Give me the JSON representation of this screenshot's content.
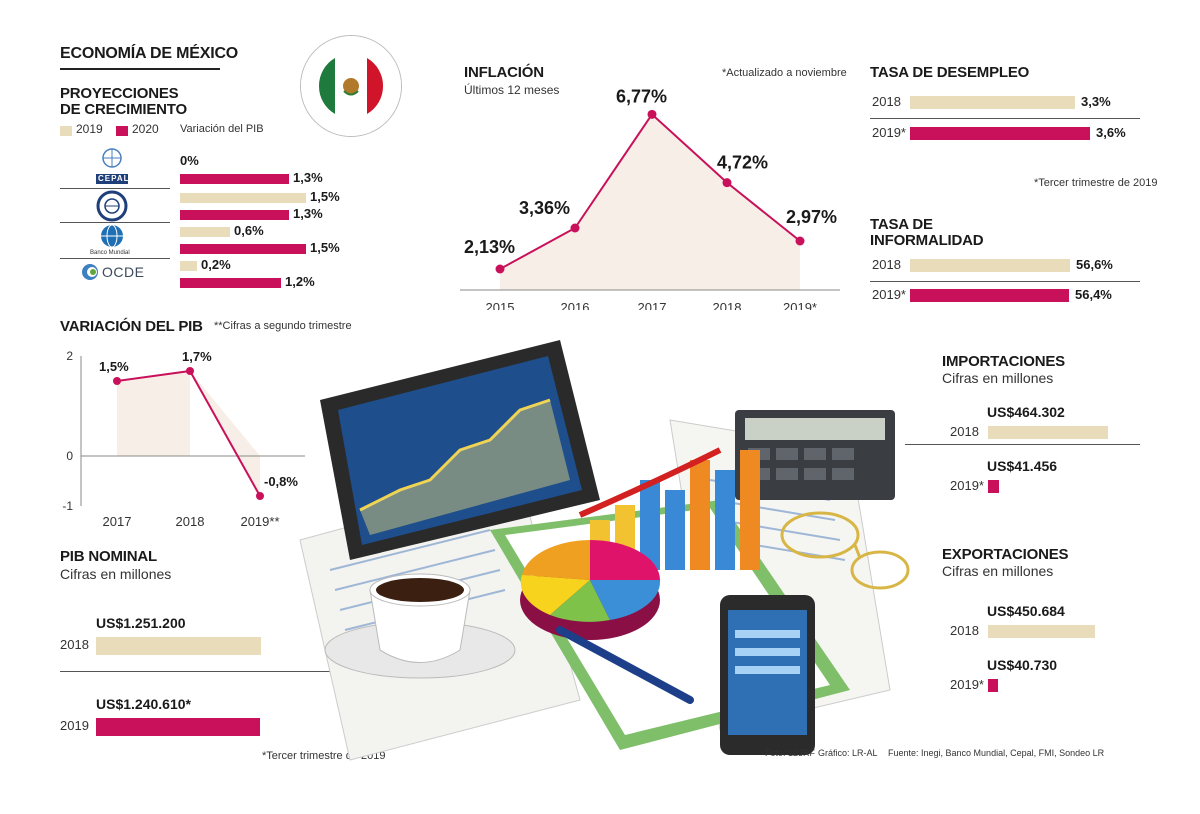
{
  "header": {
    "title": "ECONOMÍA DE MÉXICO"
  },
  "proyecciones": {
    "title_line1": "PROYECCIONES",
    "title_line2": "DE CRECIMIENTO",
    "legend_2019": "2019",
    "legend_2020": "2020",
    "legend_note": "Variación del PIB",
    "orgs": [
      {
        "name": "CEPAL",
        "label_2019": "0%",
        "label_2020": "1,3%"
      },
      {
        "name": "FMI",
        "label_2019": "1,5%",
        "label_2020": "1,3%"
      },
      {
        "name": "Banco Mundial",
        "label_2019": "0,6%",
        "label_2020": "1,5%"
      },
      {
        "name": "OCDE",
        "label_2019": "0,2%",
        "label_2020": "1,2%"
      }
    ],
    "org_labels": {
      "cepal": "CEPAL",
      "bm": "Banco Mundial",
      "ocde": "OCDE"
    }
  },
  "inflacion": {
    "title": "INFLACIÓN",
    "subtitle": "Últimos 12 meses",
    "note": "*Actualizado a noviembre"
  },
  "pib_variacion": {
    "title": "VARIACIÓN DEL PIB",
    "note": "**Cifras a segundo trimestre"
  },
  "desempleo": {
    "title": "TASA DE DESEMPLEO",
    "rows": [
      {
        "year": "2018",
        "label": "3,3%"
      },
      {
        "year": "2019*",
        "label": "3,6%"
      }
    ],
    "note": "*Tercer trimestre de 2019"
  },
  "informalidad": {
    "title_line1": "TASA DE",
    "title_line2": "INFORMALIDAD",
    "rows": [
      {
        "year": "2018",
        "label": "56,6%"
      },
      {
        "year": "2019*",
        "label": "56,4%"
      }
    ]
  },
  "importaciones": {
    "title": "IMPORTACIONES",
    "subtitle": "Cifras en millones",
    "rows": [
      {
        "year": "2018",
        "label": "US$464.302"
      },
      {
        "year": "2019*",
        "label": "US$41.456"
      }
    ]
  },
  "exportaciones": {
    "title": "EXPORTACIONES",
    "subtitle": "Cifras en millones",
    "rows": [
      {
        "year": "2018",
        "label": "US$450.684"
      },
      {
        "year": "2019*",
        "label": "US$40.730"
      }
    ]
  },
  "pib_nominal": {
    "title": "PIB NOMINAL",
    "subtitle": "Cifras en millones",
    "rows": [
      {
        "year": "2018",
        "label": "US$1.251.200"
      },
      {
        "year": "2019",
        "label": "US$1.240.610*"
      }
    ],
    "note": "*Tercer trimestre de 2019"
  },
  "credits": {
    "foto": "Foto: 123RF",
    "grafico": "Gráfico: LR-AL",
    "fuente": "Fuente: Inegi, Banco Mundial, Cepal, FMI, Sondeo LR"
  },
  "colors": {
    "cream": "#e9dcbb",
    "magenta": "#c8115a",
    "area": "#f7efe7"
  },
  "chart_data": [
    {
      "type": "bar",
      "title": "PROYECCIONES DE CRECIMIENTO",
      "categories": [
        "CEPAL",
        "FMI",
        "Banco Mundial",
        "OCDE"
      ],
      "series": [
        {
          "name": "2019",
          "values": [
            0,
            1.5,
            0.6,
            0.2
          ]
        },
        {
          "name": "2020",
          "values": [
            1.3,
            1.3,
            1.5,
            1.2
          ]
        }
      ],
      "unit": "Variación del PIB (%)",
      "orientation": "horizontal"
    },
    {
      "type": "area",
      "title": "INFLACIÓN",
      "subtitle": "Últimos 12 meses",
      "x": [
        "2015",
        "2016",
        "2017",
        "2018",
        "2019*"
      ],
      "values": [
        2.13,
        3.36,
        6.77,
        4.72,
        2.97
      ],
      "labels": [
        "2,13%",
        "3,36%",
        "6,77%",
        "4,72%",
        "2,97%"
      ],
      "ylim": [
        1.5,
        7.5
      ]
    },
    {
      "type": "area",
      "title": "VARIACIÓN DEL PIB",
      "x": [
        "2017",
        "2018",
        "2019**"
      ],
      "values": [
        1.5,
        1.7,
        -0.8
      ],
      "labels": [
        "1,5%",
        "1,7%",
        "-0,8%"
      ],
      "yticks": [
        "2",
        "0",
        "-1"
      ],
      "ylim": [
        -1,
        2
      ]
    },
    {
      "type": "bar",
      "title": "TASA DE DESEMPLEO",
      "categories": [
        "2018",
        "2019*"
      ],
      "values": [
        3.3,
        3.6
      ],
      "orientation": "horizontal"
    },
    {
      "type": "bar",
      "title": "TASA DE INFORMALIDAD",
      "categories": [
        "2018",
        "2019*"
      ],
      "values": [
        56.6,
        56.4
      ],
      "orientation": "horizontal"
    },
    {
      "type": "bar",
      "title": "IMPORTACIONES",
      "categories": [
        "2018",
        "2019*"
      ],
      "values": [
        464302,
        41456
      ],
      "orientation": "horizontal"
    },
    {
      "type": "bar",
      "title": "EXPORTACIONES",
      "categories": [
        "2018",
        "2019*"
      ],
      "values": [
        450684,
        40730
      ],
      "orientation": "horizontal"
    },
    {
      "type": "bar",
      "title": "PIB NOMINAL",
      "categories": [
        "2018",
        "2019"
      ],
      "values": [
        1251200,
        1240610
      ],
      "orientation": "horizontal"
    }
  ]
}
